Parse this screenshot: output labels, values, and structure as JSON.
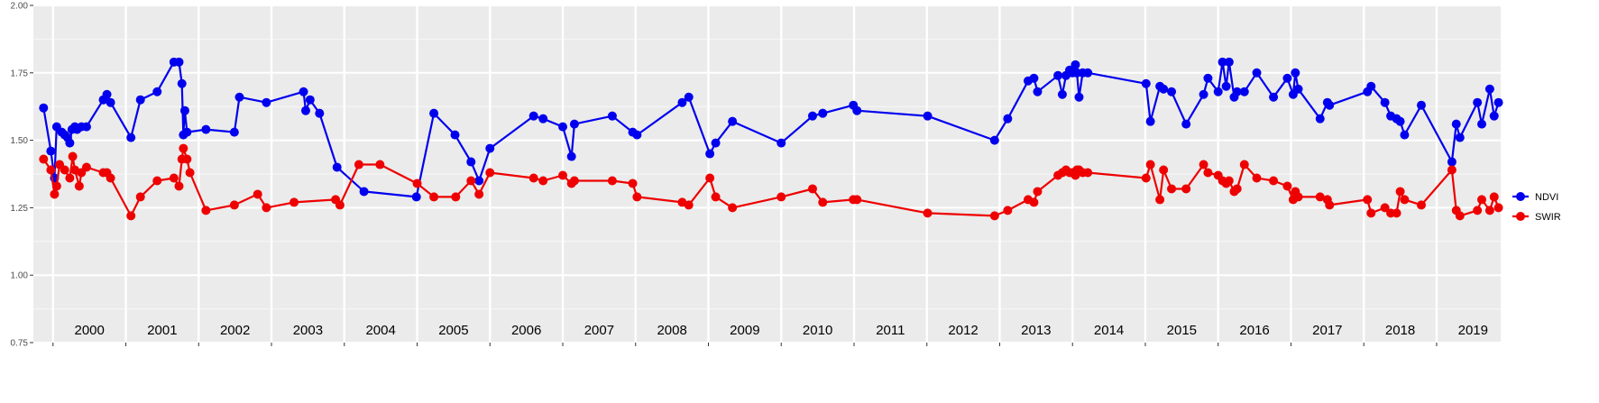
{
  "chart_data": {
    "type": "line",
    "title": "",
    "xlabel": "",
    "ylabel": "",
    "xlim": [
      1999.73,
      2019.88
    ],
    "ylim": [
      0.75,
      2.0
    ],
    "grid": true,
    "legend_position": "right",
    "y_ticks": [
      "0.75",
      "1.00",
      "1.25",
      "1.50",
      "1.75",
      "2.00"
    ],
    "x_year_labels": [
      "2000",
      "2001",
      "2002",
      "2003",
      "2004",
      "2005",
      "2006",
      "2007",
      "2008",
      "2009",
      "2010",
      "2011",
      "2012",
      "2013",
      "2014",
      "2015",
      "2016",
      "2017",
      "2018",
      "2019"
    ],
    "series": [
      {
        "name": "NDVI",
        "color": "#0000ee",
        "x": [
          1999.87,
          1999.97,
          2000.02,
          2000.05,
          2000.12,
          2000.16,
          2000.2,
          2000.23,
          2000.26,
          2000.3,
          2000.33,
          2000.39,
          2000.46,
          2000.69,
          2000.74,
          2000.79,
          2001.07,
          2001.2,
          2001.43,
          2001.66,
          2001.73,
          2001.77,
          2001.79,
          2001.81,
          2001.84,
          2002.1,
          2002.49,
          2002.56,
          2002.93,
          2003.44,
          2003.47,
          2003.53,
          2003.66,
          2003.9,
          2004.27,
          2004.99,
          2005.23,
          2005.52,
          2005.74,
          2005.85,
          2006.0,
          2006.6,
          2006.73,
          2007.0,
          2007.12,
          2007.16,
          2007.68,
          2007.96,
          2008.02,
          2008.64,
          2008.73,
          2009.02,
          2009.1,
          2009.33,
          2010.0,
          2010.43,
          2010.57,
          2010.99,
          2011.04,
          2012.01,
          2012.93,
          2013.11,
          2013.39,
          2013.47,
          2013.52,
          2013.8,
          2013.86,
          2013.91,
          2013.96,
          2014.0,
          2014.04,
          2014.06,
          2014.09,
          2014.14,
          2014.21,
          2015.01,
          2015.07,
          2015.2,
          2015.25,
          2015.36,
          2015.56,
          2015.8,
          2015.86,
          2016.0,
          2016.06,
          2016.11,
          2016.15,
          2016.22,
          2016.26,
          2016.36,
          2016.53,
          2016.76,
          2016.95,
          2017.03,
          2017.06,
          2017.1,
          2017.4,
          2017.5,
          2017.53,
          2018.05,
          2018.1,
          2018.29,
          2018.37,
          2018.45,
          2018.5,
          2018.56,
          2018.79,
          2019.21,
          2019.27,
          2019.32,
          2019.56,
          2019.62,
          2019.73,
          2019.79,
          2019.85
        ],
        "y": [
          1.62,
          1.46,
          1.36,
          1.55,
          1.53,
          1.52,
          1.51,
          1.49,
          1.54,
          1.55,
          1.54,
          1.55,
          1.55,
          1.65,
          1.67,
          1.64,
          1.51,
          1.65,
          1.68,
          1.79,
          1.79,
          1.71,
          1.52,
          1.61,
          1.53,
          1.54,
          1.53,
          1.66,
          1.64,
          1.68,
          1.61,
          1.65,
          1.6,
          1.4,
          1.31,
          1.29,
          1.6,
          1.52,
          1.42,
          1.35,
          1.47,
          1.59,
          1.58,
          1.55,
          1.44,
          1.56,
          1.59,
          1.53,
          1.52,
          1.64,
          1.66,
          1.45,
          1.49,
          1.57,
          1.49,
          1.59,
          1.6,
          1.63,
          1.61,
          1.59,
          1.5,
          1.58,
          1.72,
          1.73,
          1.68,
          1.74,
          1.67,
          1.74,
          1.76,
          1.75,
          1.78,
          1.75,
          1.66,
          1.75,
          1.75,
          1.71,
          1.57,
          1.7,
          1.69,
          1.68,
          1.56,
          1.67,
          1.73,
          1.68,
          1.79,
          1.7,
          1.79,
          1.66,
          1.68,
          1.68,
          1.75,
          1.66,
          1.73,
          1.67,
          1.75,
          1.69,
          1.58,
          1.64,
          1.63,
          1.68,
          1.7,
          1.64,
          1.59,
          1.58,
          1.57,
          1.52,
          1.63,
          1.42,
          1.56,
          1.51,
          1.64,
          1.56,
          1.69,
          1.59,
          1.64
        ]
      },
      {
        "name": "SWIR",
        "color": "#ee0000",
        "x": [
          1999.87,
          1999.97,
          2000.02,
          2000.05,
          2000.09,
          2000.16,
          2000.23,
          2000.27,
          2000.3,
          2000.36,
          2000.39,
          2000.46,
          2000.69,
          2000.74,
          2000.79,
          2001.07,
          2001.2,
          2001.43,
          2001.66,
          2001.73,
          2001.77,
          2001.79,
          2001.84,
          2001.88,
          2002.1,
          2002.49,
          2002.81,
          2002.93,
          2003.31,
          2003.88,
          2003.94,
          2004.2,
          2004.49,
          2005.0,
          2005.23,
          2005.53,
          2005.74,
          2005.85,
          2006.0,
          2006.6,
          2006.73,
          2007.0,
          2007.12,
          2007.16,
          2007.68,
          2007.96,
          2008.02,
          2008.64,
          2008.73,
          2009.02,
          2009.1,
          2009.33,
          2010.0,
          2010.43,
          2010.57,
          2010.99,
          2011.04,
          2012.01,
          2012.93,
          2013.11,
          2013.39,
          2013.47,
          2013.52,
          2013.8,
          2013.86,
          2013.91,
          2013.96,
          2014.0,
          2014.04,
          2014.06,
          2014.09,
          2014.14,
          2014.21,
          2015.01,
          2015.07,
          2015.2,
          2015.25,
          2015.36,
          2015.56,
          2015.8,
          2015.86,
          2016.0,
          2016.06,
          2016.11,
          2016.15,
          2016.22,
          2016.26,
          2016.36,
          2016.53,
          2016.76,
          2016.95,
          2017.03,
          2017.06,
          2017.1,
          2017.4,
          2017.5,
          2017.53,
          2018.05,
          2018.1,
          2018.29,
          2018.37,
          2018.45,
          2018.5,
          2018.56,
          2018.79,
          2019.21,
          2019.27,
          2019.32,
          2019.56,
          2019.62,
          2019.73,
          2019.79,
          2019.85
        ],
        "y": [
          1.43,
          1.39,
          1.3,
          1.33,
          1.41,
          1.39,
          1.36,
          1.44,
          1.39,
          1.33,
          1.38,
          1.4,
          1.38,
          1.38,
          1.36,
          1.22,
          1.29,
          1.35,
          1.36,
          1.33,
          1.43,
          1.47,
          1.43,
          1.38,
          1.24,
          1.26,
          1.3,
          1.25,
          1.27,
          1.28,
          1.26,
          1.41,
          1.41,
          1.34,
          1.29,
          1.29,
          1.35,
          1.3,
          1.38,
          1.36,
          1.35,
          1.37,
          1.34,
          1.35,
          1.35,
          1.34,
          1.29,
          1.27,
          1.26,
          1.36,
          1.29,
          1.25,
          1.29,
          1.32,
          1.27,
          1.28,
          1.28,
          1.23,
          1.22,
          1.24,
          1.28,
          1.27,
          1.31,
          1.37,
          1.38,
          1.39,
          1.38,
          1.38,
          1.37,
          1.39,
          1.39,
          1.38,
          1.38,
          1.36,
          1.41,
          1.28,
          1.39,
          1.32,
          1.32,
          1.41,
          1.38,
          1.37,
          1.35,
          1.34,
          1.35,
          1.31,
          1.32,
          1.41,
          1.36,
          1.35,
          1.33,
          1.28,
          1.31,
          1.29,
          1.29,
          1.28,
          1.26,
          1.28,
          1.23,
          1.25,
          1.23,
          1.23,
          1.31,
          1.28,
          1.26,
          1.39,
          1.24,
          1.22,
          1.24,
          1.28,
          1.24,
          1.29,
          1.25
        ]
      }
    ]
  }
}
